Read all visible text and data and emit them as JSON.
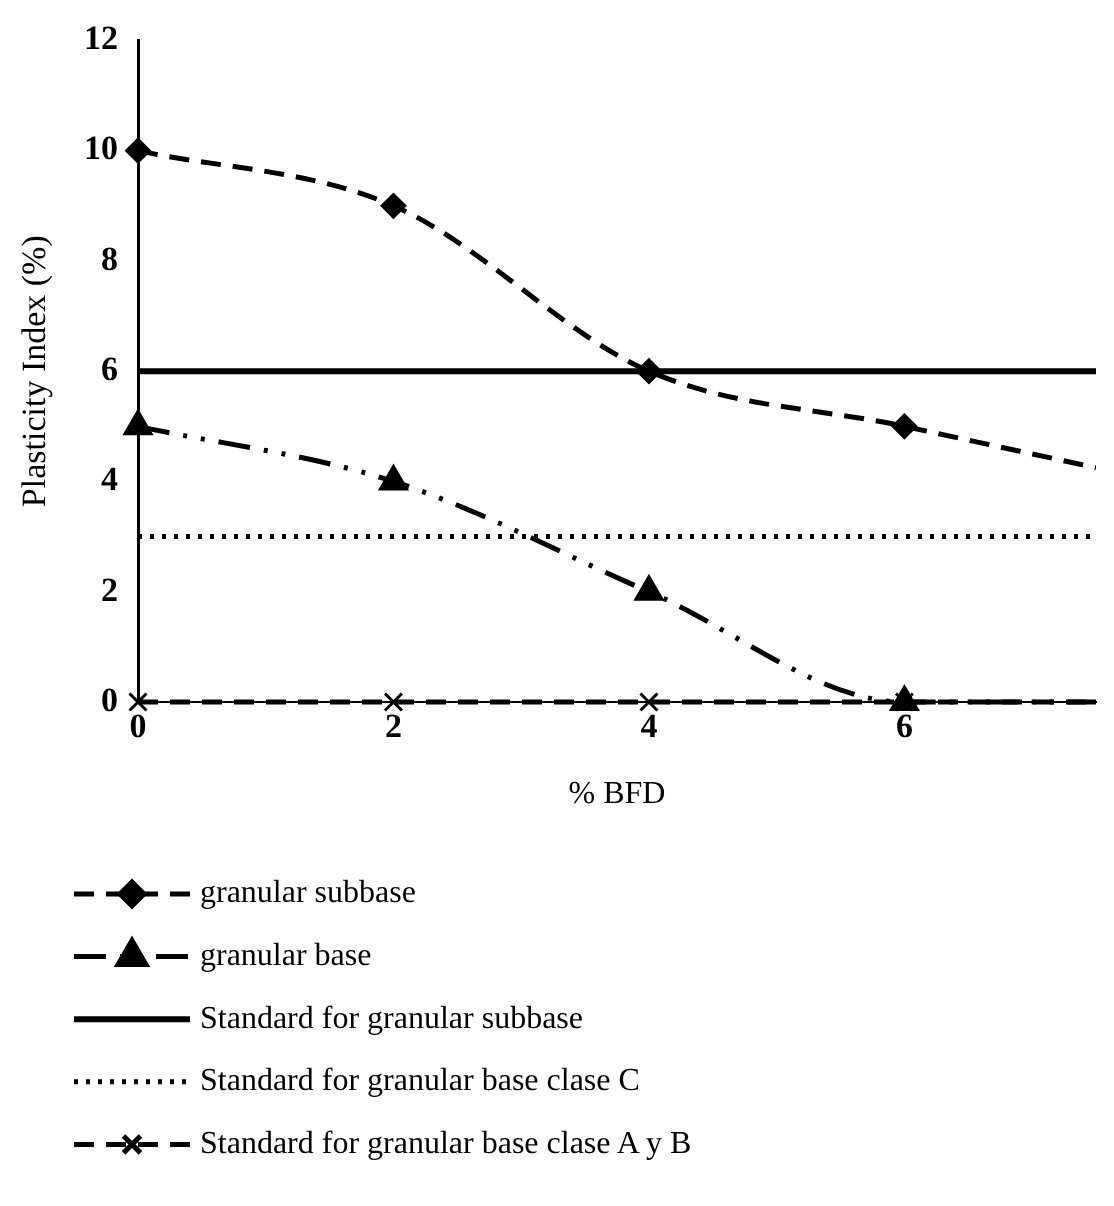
{
  "chart_data": {
    "type": "line",
    "xlabel": "% BFD",
    "ylabel": "Plasticity Index (%)",
    "xlim": [
      0,
      7.5
    ],
    "xticks": [
      0,
      2,
      4,
      6
    ],
    "ylim": [
      0,
      12
    ],
    "yticks": [
      0,
      2,
      4,
      6,
      8,
      10,
      12
    ],
    "grid": false,
    "legend": "bottom",
    "series": [
      {
        "name": "granular subbase",
        "color": "#000000",
        "x": [
          0,
          2,
          4,
          6,
          7.5
        ],
        "values": [
          10,
          9,
          6,
          5,
          4.25
        ],
        "marker": "diamond",
        "line_style": "dashed"
      },
      {
        "name": "granular base",
        "color": "#000000",
        "x": [
          0,
          2,
          4,
          6,
          7.5
        ],
        "values": [
          5,
          4,
          2,
          0,
          0
        ],
        "marker": "triangle",
        "line_style": "dashdot"
      },
      {
        "name": "Standard for granular subbase",
        "color": "#000000",
        "x": [
          0,
          7.5
        ],
        "values": [
          6,
          6
        ],
        "marker": "none",
        "line_style": "solid"
      },
      {
        "name": "Standard for granular base clase C",
        "color": "#000000",
        "x": [
          0,
          7.5
        ],
        "values": [
          3,
          3
        ],
        "marker": "none",
        "line_style": "dotted"
      },
      {
        "name": "Standard for granular base clase A y B",
        "color": "#000000",
        "x": [
          0,
          2,
          4,
          6,
          7.5
        ],
        "values": [
          0,
          0,
          0,
          0,
          0
        ],
        "marker": "cross",
        "line_style": "dashed"
      }
    ]
  }
}
